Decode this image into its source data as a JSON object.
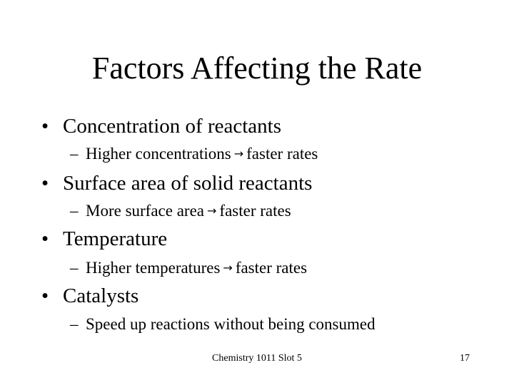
{
  "slide": {
    "title": "Factors Affecting the Rate",
    "bullet_glyph": "•",
    "sub_glyph": "–",
    "arrow_glyph": "→",
    "items": [
      {
        "text": "Concentration of reactants",
        "sub_before": "Higher concentrations",
        "sub_after": "faster rates"
      },
      {
        "text": "Surface area of solid reactants",
        "sub_before": "More surface area",
        "sub_after": "faster rates"
      },
      {
        "text": "Temperature",
        "sub_before": "Higher temperatures",
        "sub_after": "faster rates"
      },
      {
        "text": "Catalysts",
        "sub_text": "Speed up reactions without being consumed"
      }
    ],
    "footer": {
      "center": "Chemistry 1011 Slot 5",
      "page_number": "17"
    }
  }
}
